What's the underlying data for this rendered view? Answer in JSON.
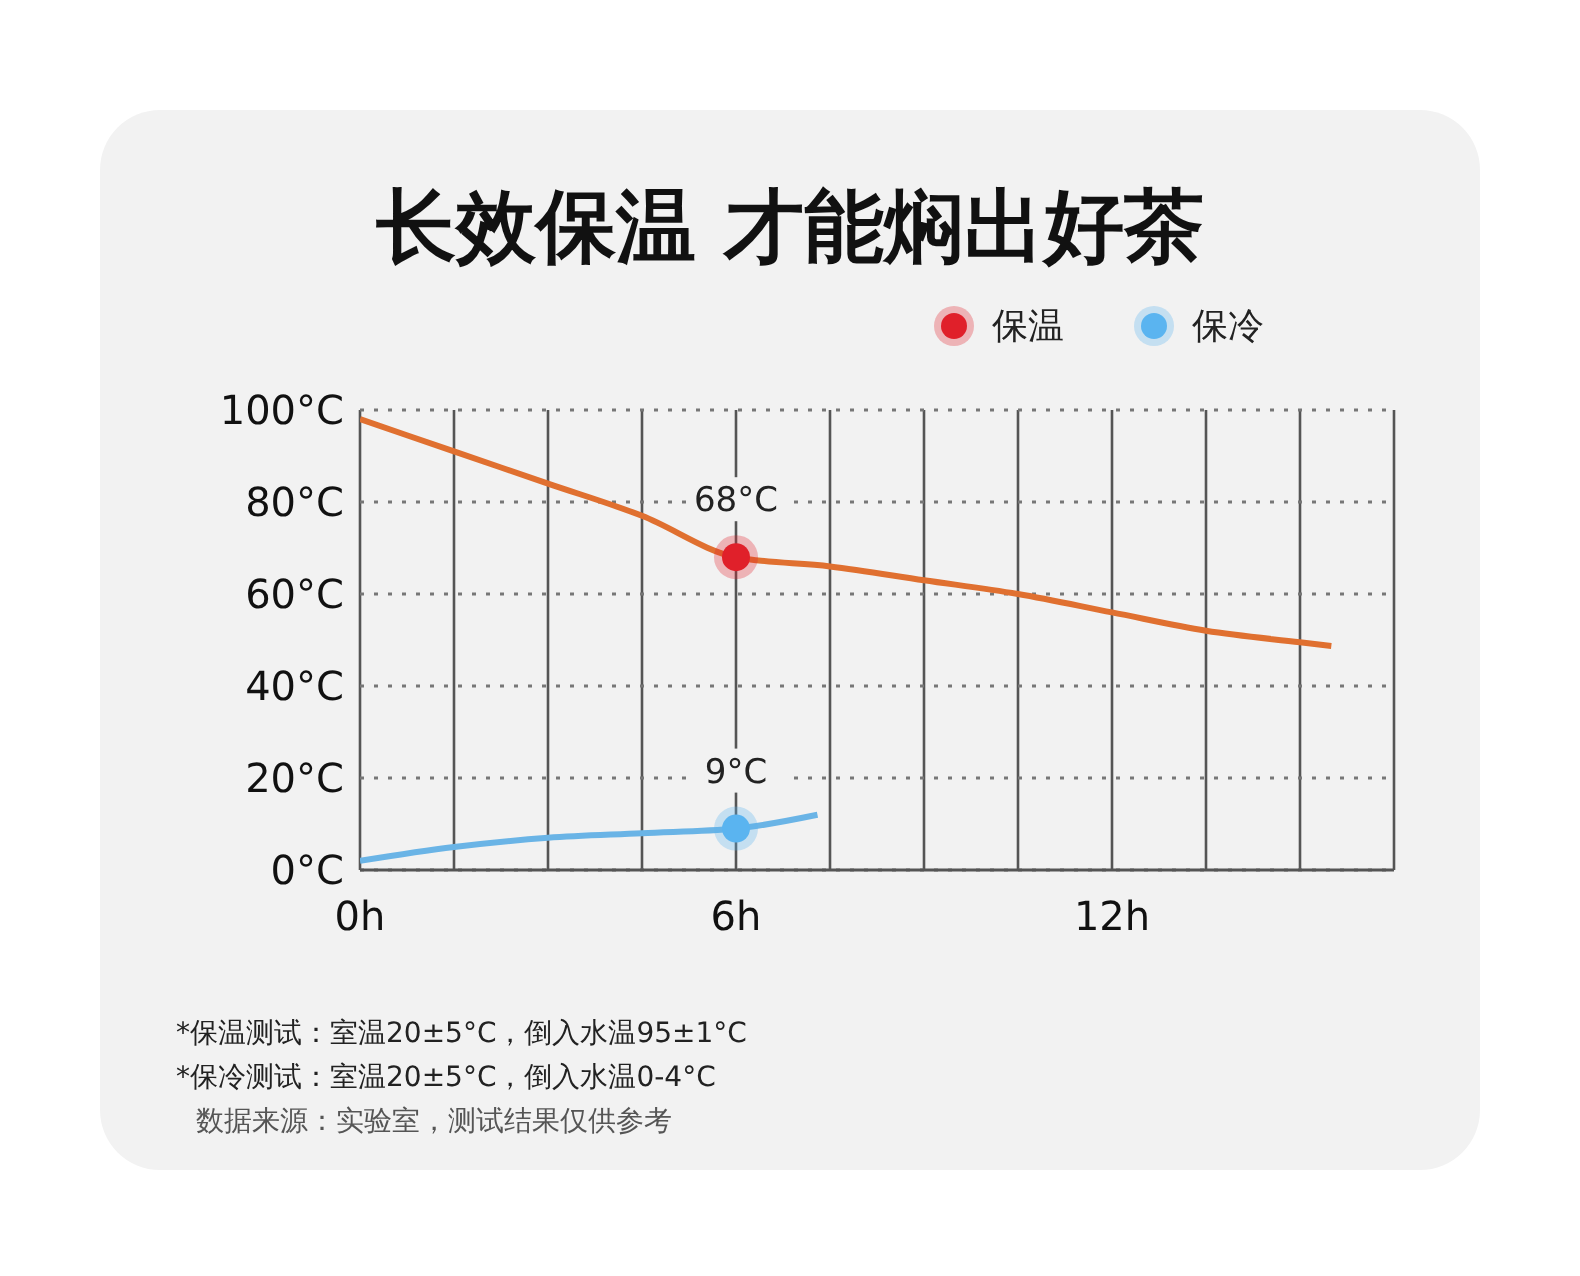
{
  "chart_data": {
    "type": "line",
    "title": "长效保温 才能焖出好茶",
    "series": [
      {
        "color": "#e07030",
        "x": [
          0,
          1.5,
          3,
          4.5,
          6,
          7.5,
          9,
          10.5,
          12,
          13.5,
          15,
          15.5
        ],
        "values": [
          98,
          91,
          84,
          77,
          68,
          66,
          63,
          60,
          56,
          52,
          49.5,
          48.7
        ]
      },
      {
        "color": "#6ab4e6",
        "x": [
          0,
          1.5,
          3,
          4.5,
          6,
          7.3
        ],
        "values": [
          2,
          5,
          7,
          8,
          9,
          12
        ]
      },
      {
        "type": "scatter",
        "name": "保温",
        "marker": "circle",
        "color": "#e0202a",
        "x": [
          6
        ],
        "values": [
          68
        ],
        "value_labels": [
          "68°C"
        ]
      },
      {
        "type": "scatter",
        "name": "保冷",
        "marker": "circle",
        "color": "#5ab4f0",
        "x": [
          6
        ],
        "values": [
          9
        ],
        "value_labels": [
          "9°C"
        ]
      }
    ],
    "xlim": [
      0,
      16.5
    ],
    "xticks": [
      {
        "value": 0,
        "label": "0h"
      },
      {
        "value": 1.5,
        "label": null
      },
      {
        "value": 3,
        "label": null
      },
      {
        "value": 4.5,
        "label": null
      },
      {
        "value": 6,
        "label": "6h"
      },
      {
        "value": 7.5,
        "label": null
      },
      {
        "value": 9,
        "label": null
      },
      {
        "value": 10.5,
        "label": null
      },
      {
        "value": 12,
        "label": "12h"
      },
      {
        "value": 13.5,
        "label": null
      },
      {
        "value": 15,
        "label": null
      }
    ],
    "ylim": [
      0,
      100
    ],
    "yticks": [
      {
        "value": 0,
        "label": "0°C"
      },
      {
        "value": 20,
        "label": "20°C"
      },
      {
        "value": 40,
        "label": "40°C"
      },
      {
        "value": 60,
        "label": "60°C"
      },
      {
        "value": 80,
        "label": "80°C"
      },
      {
        "value": 100,
        "label": "100°C"
      }
    ],
    "grid": true,
    "legend": "top right",
    "annotations": [
      "*保温测试：室温20±5°C，倒入水温95±1°C",
      "*保冷测试：室温20±5°C，倒入水温0-4°C",
      "数据来源：实验室，测试结果仅供参考"
    ]
  }
}
